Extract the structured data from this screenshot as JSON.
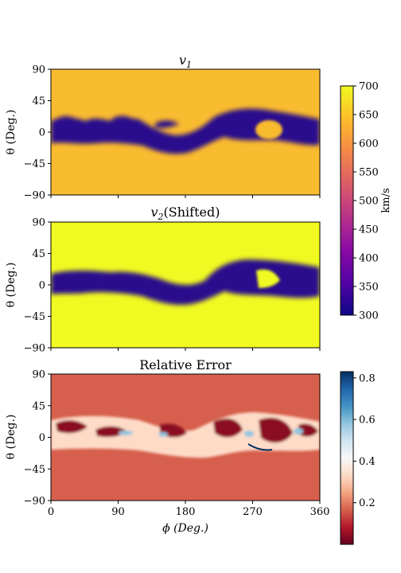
{
  "chart_data": [
    {
      "type": "heatmap",
      "title": "v",
      "title_sub": "1",
      "ylabel": "θ (Deg.)",
      "xlim": [
        0,
        360
      ],
      "ylim": [
        -90,
        90
      ],
      "yticks": [
        "90",
        "45",
        "0",
        "−45",
        "−90"
      ],
      "ytick_values": [
        90,
        45,
        0,
        -45,
        -90
      ],
      "xticks_shown": false,
      "colormap": "plasma",
      "background_value": 650,
      "background_color": "#f9bb2f",
      "band_color": "#2a0a8c"
    },
    {
      "type": "heatmap",
      "title": "v",
      "title_sub": "2",
      "title_suffix": "(Shifted)",
      "ylabel": "θ (Deg.)",
      "xlim": [
        0,
        360
      ],
      "ylim": [
        -90,
        90
      ],
      "yticks": [
        "90",
        "45",
        "0",
        "−45",
        "−90"
      ],
      "ytick_values": [
        90,
        45,
        0,
        -45,
        -90
      ],
      "xticks_shown": false,
      "colormap": "plasma",
      "background_value": 700,
      "background_color": "#f0f921",
      "band_color": "#2a0a8c"
    },
    {
      "type": "heatmap",
      "title": "Relative Error",
      "ylabel": "θ (Deg.)",
      "xlabel": "ϕ (Deg.)",
      "xlim": [
        0,
        360
      ],
      "ylim": [
        -90,
        90
      ],
      "xticks": [
        "0",
        "90",
        "180",
        "270",
        "360"
      ],
      "xtick_values": [
        0,
        90,
        180,
        270,
        360
      ],
      "yticks": [
        "90",
        "45",
        "0",
        "−45",
        "−90"
      ],
      "ytick_values": [
        90,
        45,
        0,
        -45,
        -90
      ],
      "colormap": "RdBu",
      "background_color": "#d6604d"
    }
  ],
  "colorbars": [
    {
      "label": "km/s",
      "ticks": [
        "700",
        "650",
        "600",
        "550",
        "500",
        "450",
        "400",
        "350",
        "300"
      ],
      "tick_values": [
        700,
        650,
        600,
        550,
        500,
        450,
        400,
        350,
        300
      ],
      "range": [
        300,
        700
      ],
      "colors": [
        "#0d0887",
        "#5302a3",
        "#8b0aa5",
        "#b83289",
        "#db5c68",
        "#f48849",
        "#febd2a",
        "#f0f921"
      ]
    },
    {
      "label": "",
      "ticks": [
        "0.8",
        "0.6",
        "0.4",
        "0.2"
      ],
      "tick_values": [
        0.8,
        0.6,
        0.4,
        0.2
      ],
      "range": [
        0.0,
        0.83
      ],
      "colors": [
        "#67001f",
        "#b2182b",
        "#d6604d",
        "#f4a582",
        "#fddbc7",
        "#f7f7f7",
        "#d1e5f0",
        "#92c5de",
        "#4393c3",
        "#2166ac",
        "#053061"
      ]
    }
  ]
}
